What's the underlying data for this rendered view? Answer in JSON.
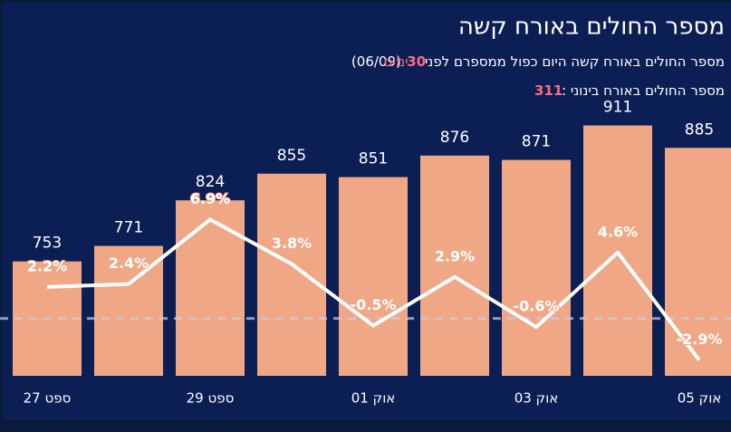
{
  "chart_data": {
    "type": "bar",
    "title": "מספר החולים באורח קשה",
    "subtitle": {
      "text": "מספר החולים באורח קשה היום כפול ממספרם לפני",
      "days": 30,
      "unit": "ימים",
      "date": "(06/09)"
    },
    "note": {
      "text": "מספר החולים באורח בינוני :",
      "value": 311
    },
    "categories": [
      "ספט 27",
      null,
      "ספט 29",
      null,
      "אוק 01",
      null,
      "אוק 03",
      null,
      "אוק 05"
    ],
    "series": [
      {
        "type": "bar",
        "color": "#f0a785",
        "values": [
          753,
          771,
          824,
          855,
          851,
          876,
          871,
          911,
          885
        ]
      },
      {
        "type": "line",
        "axis": "y2",
        "color": "#ffffff",
        "values": [
          2.2,
          2.4,
          6.9,
          3.8,
          -0.5,
          2.9,
          -0.6,
          4.6,
          -2.9
        ],
        "value_labels": [
          "2.2%",
          "2.4%",
          "6.9%",
          "3.8%",
          "-0.5%",
          "2.9%",
          "-0.6%",
          "4.6%",
          "-2.9%"
        ]
      }
    ],
    "ylim": [
      620,
      920
    ],
    "y2lim": [
      -4,
      14
    ]
  }
}
